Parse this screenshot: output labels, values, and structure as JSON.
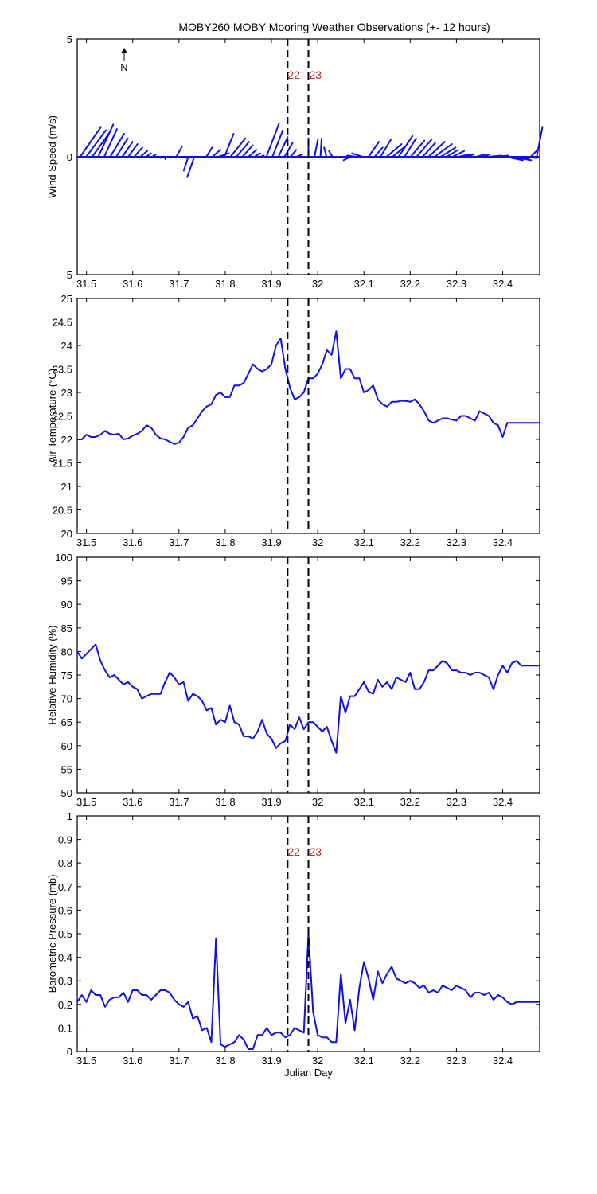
{
  "chart_data": [
    {
      "type": "wind_barbs",
      "title": "MOBY260 MOBY Mooring Weather Observations (+- 12 hours)",
      "xlabel": "",
      "ylabel": "Wind Speed (m/s)",
      "xlim": [
        31.48,
        32.48
      ],
      "ylim": [
        -5,
        5
      ],
      "y_tick_labels": [
        "5",
        "0",
        "5"
      ],
      "x_ticks": [
        31.5,
        31.6,
        31.7,
        31.8,
        31.9,
        32,
        32.1,
        32.2,
        32.3,
        32.4
      ],
      "north_label": "N",
      "markers": [
        {
          "x": 31.935,
          "label": "22"
        },
        {
          "x": 31.98,
          "label": "23"
        }
      ],
      "u": [
        1.8,
        1.7,
        1.5,
        1.3,
        1.1,
        1.2,
        1.0,
        0.9,
        0.8,
        0.7,
        0.6,
        0.4,
        0.3,
        0.2,
        0.1,
        0.0,
        0.5,
        0.3,
        -0.4,
        -0.6,
        -0.6,
        0.5,
        0.7,
        0.9,
        0.8,
        1.3,
        1.1,
        0.9,
        0.7,
        0.5,
        0.3,
        1.1,
        0.9,
        0.8,
        0.7,
        0.5,
        0.5,
        0.4,
        0.0,
        0.3,
        0.1,
        -0.2,
        -0.3,
        -0.4,
        -0.5,
        -0.6,
        -0.8,
        -0.9,
        0.9,
        0.7,
        0.9,
        1.3,
        1.1,
        1.2,
        1.0,
        1.2,
        1.3,
        1.1,
        1.4,
        1.5,
        1.3,
        1.0,
        1.0,
        0.9,
        0.8,
        1.0,
        0.7,
        0.6,
        1.1,
        1.2,
        1.0,
        1.4,
        1.6,
        0.9,
        1.0,
        0.6,
        0.5
      ],
      "v": [
        2.6,
        2.3,
        2.1,
        2.8,
        2.4,
        2.0,
        1.6,
        1.3,
        1.1,
        0.8,
        0.5,
        0.3,
        0.2,
        -0.1,
        -0.2,
        -0.1,
        0.9,
        -0.1,
        -1.2,
        -1.7,
        -0.1,
        0.8,
        0.6,
        0.3,
        2.0,
        1.6,
        1.3,
        1.0,
        0.6,
        0.3,
        0.1,
        2.9,
        2.3,
        1.7,
        1.2,
        0.6,
        0.2,
        0.0,
        1.6,
        1.5,
        1.6,
        0.8,
        0.5,
        0.0,
        0.0,
        -0.3,
        0.1,
        0.3,
        1.3,
        0.8,
        1.5,
        1.1,
        0.9,
        1.8,
        1.6,
        1.4,
        1.5,
        1.2,
        1.3,
        1.1,
        0.8,
        0.6,
        0.5,
        0.2,
        0.2,
        0.0,
        0.2,
        0.2,
        0.1,
        0.1,
        0.0,
        -0.3,
        -0.3,
        -0.2,
        -0.1,
        0.6,
        2.6
      ]
    },
    {
      "type": "line",
      "xlabel": "",
      "ylabel": "Air Temperature (°C)",
      "xlim": [
        31.48,
        32.48
      ],
      "ylim": [
        20,
        25
      ],
      "y_ticks": [
        20,
        20.5,
        21,
        21.5,
        22,
        22.5,
        23,
        23.5,
        24,
        24.5,
        25
      ],
      "x_ticks": [
        31.5,
        31.6,
        31.7,
        31.8,
        31.9,
        32,
        32.1,
        32.2,
        32.3,
        32.4
      ],
      "markers": [
        {
          "x": 31.935,
          "label": ""
        },
        {
          "x": 31.98,
          "label": ""
        }
      ],
      "x": [
        31.48,
        31.49,
        31.5,
        31.51,
        31.52,
        31.53,
        31.54,
        31.55,
        31.56,
        31.57,
        31.58,
        31.59,
        31.6,
        31.61,
        31.62,
        31.63,
        31.64,
        31.65,
        31.66,
        31.67,
        31.68,
        31.69,
        31.7,
        31.71,
        31.72,
        31.73,
        31.74,
        31.75,
        31.76,
        31.77,
        31.78,
        31.79,
        31.8,
        31.81,
        31.82,
        31.83,
        31.84,
        31.85,
        31.86,
        31.87,
        31.88,
        31.89,
        31.9,
        31.91,
        31.92,
        31.93,
        31.94,
        31.95,
        31.96,
        31.97,
        31.98,
        31.99,
        32.0,
        32.01,
        32.02,
        32.03,
        32.04,
        32.05,
        32.06,
        32.07,
        32.08,
        32.09,
        32.1,
        32.11,
        32.12,
        32.13,
        32.14,
        32.15,
        32.16,
        32.17,
        32.18,
        32.19,
        32.2,
        32.21,
        32.22,
        32.23,
        32.24,
        32.25,
        32.26,
        32.27,
        32.28,
        32.29,
        32.3,
        32.31,
        32.32,
        32.33,
        32.34,
        32.35,
        32.36,
        32.37,
        32.38,
        32.39,
        32.4,
        32.41,
        32.42,
        32.43,
        32.44,
        32.45,
        32.46,
        32.47,
        32.48
      ],
      "y": [
        22.0,
        22.0,
        22.1,
        22.05,
        22.05,
        22.1,
        22.18,
        22.12,
        22.1,
        22.12,
        22.0,
        22.02,
        22.08,
        22.12,
        22.18,
        22.3,
        22.25,
        22.1,
        22.02,
        22.0,
        21.95,
        21.9,
        21.93,
        22.05,
        22.25,
        22.3,
        22.45,
        22.6,
        22.7,
        22.75,
        22.95,
        23.0,
        22.9,
        22.9,
        23.15,
        23.15,
        23.2,
        23.4,
        23.6,
        23.5,
        23.45,
        23.5,
        23.6,
        24.0,
        24.15,
        23.5,
        23.1,
        22.85,
        22.9,
        23.0,
        23.3,
        23.3,
        23.4,
        23.6,
        23.9,
        23.8,
        24.3,
        23.3,
        23.5,
        23.5,
        23.3,
        23.3,
        23.0,
        23.05,
        23.15,
        22.85,
        22.75,
        22.7,
        22.8,
        22.8,
        22.82,
        22.82,
        22.8,
        22.85,
        22.75,
        22.6,
        22.4,
        22.35,
        22.4,
        22.45,
        22.45,
        22.42,
        22.4,
        22.5,
        22.5,
        22.45,
        22.4,
        22.6,
        22.55,
        22.5,
        22.35,
        22.3,
        22.05,
        22.35,
        22.35,
        22.35,
        22.35,
        22.35,
        22.35,
        22.35,
        22.35
      ]
    },
    {
      "type": "line",
      "xlabel": "",
      "ylabel": "Relative Humidity (%)",
      "xlim": [
        31.48,
        32.48
      ],
      "ylim": [
        50,
        100
      ],
      "y_ticks": [
        50,
        55,
        60,
        65,
        70,
        75,
        80,
        85,
        90,
        95,
        100
      ],
      "x_ticks": [
        31.5,
        31.6,
        31.7,
        31.8,
        31.9,
        32,
        32.1,
        32.2,
        32.3,
        32.4
      ],
      "markers": [
        {
          "x": 31.935,
          "label": ""
        },
        {
          "x": 31.98,
          "label": ""
        }
      ],
      "x": [
        31.48,
        31.49,
        31.5,
        31.51,
        31.52,
        31.53,
        31.54,
        31.55,
        31.56,
        31.57,
        31.58,
        31.59,
        31.6,
        31.61,
        31.62,
        31.63,
        31.64,
        31.65,
        31.66,
        31.67,
        31.68,
        31.69,
        31.7,
        31.71,
        31.72,
        31.73,
        31.74,
        31.75,
        31.76,
        31.77,
        31.78,
        31.79,
        31.8,
        31.81,
        31.82,
        31.83,
        31.84,
        31.85,
        31.86,
        31.87,
        31.88,
        31.89,
        31.9,
        31.91,
        31.92,
        31.93,
        31.94,
        31.95,
        31.96,
        31.97,
        31.98,
        31.99,
        32.0,
        32.01,
        32.02,
        32.03,
        32.04,
        32.05,
        32.06,
        32.07,
        32.08,
        32.09,
        32.1,
        32.11,
        32.12,
        32.13,
        32.14,
        32.15,
        32.16,
        32.17,
        32.18,
        32.19,
        32.2,
        32.21,
        32.22,
        32.23,
        32.24,
        32.25,
        32.26,
        32.27,
        32.28,
        32.29,
        32.3,
        32.31,
        32.32,
        32.33,
        32.34,
        32.35,
        32.36,
        32.37,
        32.38,
        32.39,
        32.4,
        32.41,
        32.42,
        32.43,
        32.44,
        32.45,
        32.46,
        32.47,
        32.48
      ],
      "y": [
        80.0,
        78.5,
        79.5,
        80.5,
        81.5,
        78.0,
        76.0,
        74.5,
        75.0,
        74.0,
        73.0,
        73.5,
        72.5,
        72.0,
        70.0,
        70.5,
        71.0,
        71.0,
        71.0,
        73.5,
        75.5,
        74.5,
        73.0,
        73.5,
        69.5,
        71.0,
        70.5,
        69.5,
        67.5,
        68.0,
        64.5,
        65.5,
        65.0,
        68.5,
        65.0,
        64.5,
        62.0,
        62.0,
        61.5,
        63.0,
        65.5,
        62.5,
        61.5,
        59.5,
        60.5,
        61.0,
        64.5,
        63.5,
        66.0,
        63.5,
        65.0,
        65.0,
        64.0,
        63.0,
        64.0,
        61.0,
        58.5,
        70.5,
        67.0,
        70.5,
        70.5,
        72.0,
        73.5,
        71.5,
        71.0,
        74.0,
        72.5,
        73.5,
        72.0,
        74.5,
        74.0,
        73.5,
        75.5,
        72.0,
        72.0,
        73.5,
        76.0,
        76.0,
        77.0,
        78.0,
        77.5,
        76.0,
        76.0,
        75.5,
        75.5,
        75.0,
        75.5,
        75.5,
        75.0,
        74.5,
        72.0,
        75.0,
        77.0,
        75.5,
        77.5,
        78.0,
        77.0,
        77.0,
        77.0,
        77.0,
        77.0
      ]
    },
    {
      "type": "line",
      "xlabel": "Julian Day",
      "ylabel": "Barometric Pressure (mb)",
      "xlim": [
        31.48,
        32.48
      ],
      "ylim": [
        0,
        1
      ],
      "y_ticks": [
        0,
        0.1,
        0.2,
        0.3,
        0.4,
        0.5,
        0.6,
        0.7,
        0.8,
        0.9,
        1
      ],
      "x_ticks": [
        31.5,
        31.6,
        31.7,
        31.8,
        31.9,
        32,
        32.1,
        32.2,
        32.3,
        32.4
      ],
      "markers": [
        {
          "x": 31.935,
          "label": "22"
        },
        {
          "x": 31.98,
          "label": "23"
        }
      ],
      "x": [
        31.48,
        31.49,
        31.5,
        31.51,
        31.52,
        31.53,
        31.54,
        31.55,
        31.56,
        31.57,
        31.58,
        31.59,
        31.6,
        31.61,
        31.62,
        31.63,
        31.64,
        31.65,
        31.66,
        31.67,
        31.68,
        31.69,
        31.7,
        31.71,
        31.72,
        31.73,
        31.74,
        31.75,
        31.76,
        31.77,
        31.78,
        31.79,
        31.8,
        31.81,
        31.82,
        31.83,
        31.84,
        31.85,
        31.86,
        31.87,
        31.88,
        31.89,
        31.9,
        31.91,
        31.92,
        31.93,
        31.94,
        31.95,
        31.96,
        31.97,
        31.98,
        31.99,
        32.0,
        32.01,
        32.02,
        32.03,
        32.04,
        32.05,
        32.06,
        32.07,
        32.08,
        32.09,
        32.1,
        32.11,
        32.12,
        32.13,
        32.14,
        32.15,
        32.16,
        32.17,
        32.18,
        32.19,
        32.2,
        32.21,
        32.22,
        32.23,
        32.24,
        32.25,
        32.26,
        32.27,
        32.28,
        32.29,
        32.3,
        32.31,
        32.32,
        32.33,
        32.34,
        32.35,
        32.36,
        32.37,
        32.38,
        32.39,
        32.4,
        32.41,
        32.42,
        32.43,
        32.44,
        32.45,
        32.46,
        32.47,
        32.48
      ],
      "y": [
        0.21,
        0.24,
        0.21,
        0.26,
        0.24,
        0.24,
        0.19,
        0.22,
        0.23,
        0.23,
        0.25,
        0.21,
        0.26,
        0.26,
        0.24,
        0.24,
        0.22,
        0.24,
        0.26,
        0.26,
        0.25,
        0.22,
        0.2,
        0.19,
        0.21,
        0.14,
        0.15,
        0.09,
        0.1,
        0.04,
        0.48,
        0.03,
        0.02,
        0.03,
        0.04,
        0.07,
        0.05,
        0.01,
        0.01,
        0.07,
        0.07,
        0.1,
        0.07,
        0.08,
        0.08,
        0.06,
        0.07,
        0.1,
        0.09,
        0.08,
        0.5,
        0.17,
        0.07,
        0.06,
        0.06,
        0.04,
        0.04,
        0.33,
        0.12,
        0.22,
        0.09,
        0.27,
        0.38,
        0.31,
        0.22,
        0.34,
        0.29,
        0.33,
        0.36,
        0.31,
        0.3,
        0.29,
        0.3,
        0.29,
        0.27,
        0.28,
        0.25,
        0.26,
        0.25,
        0.28,
        0.27,
        0.26,
        0.28,
        0.27,
        0.26,
        0.23,
        0.25,
        0.25,
        0.24,
        0.25,
        0.22,
        0.24,
        0.23,
        0.21,
        0.2,
        0.21,
        0.21,
        0.21,
        0.21,
        0.21,
        0.21
      ]
    }
  ]
}
